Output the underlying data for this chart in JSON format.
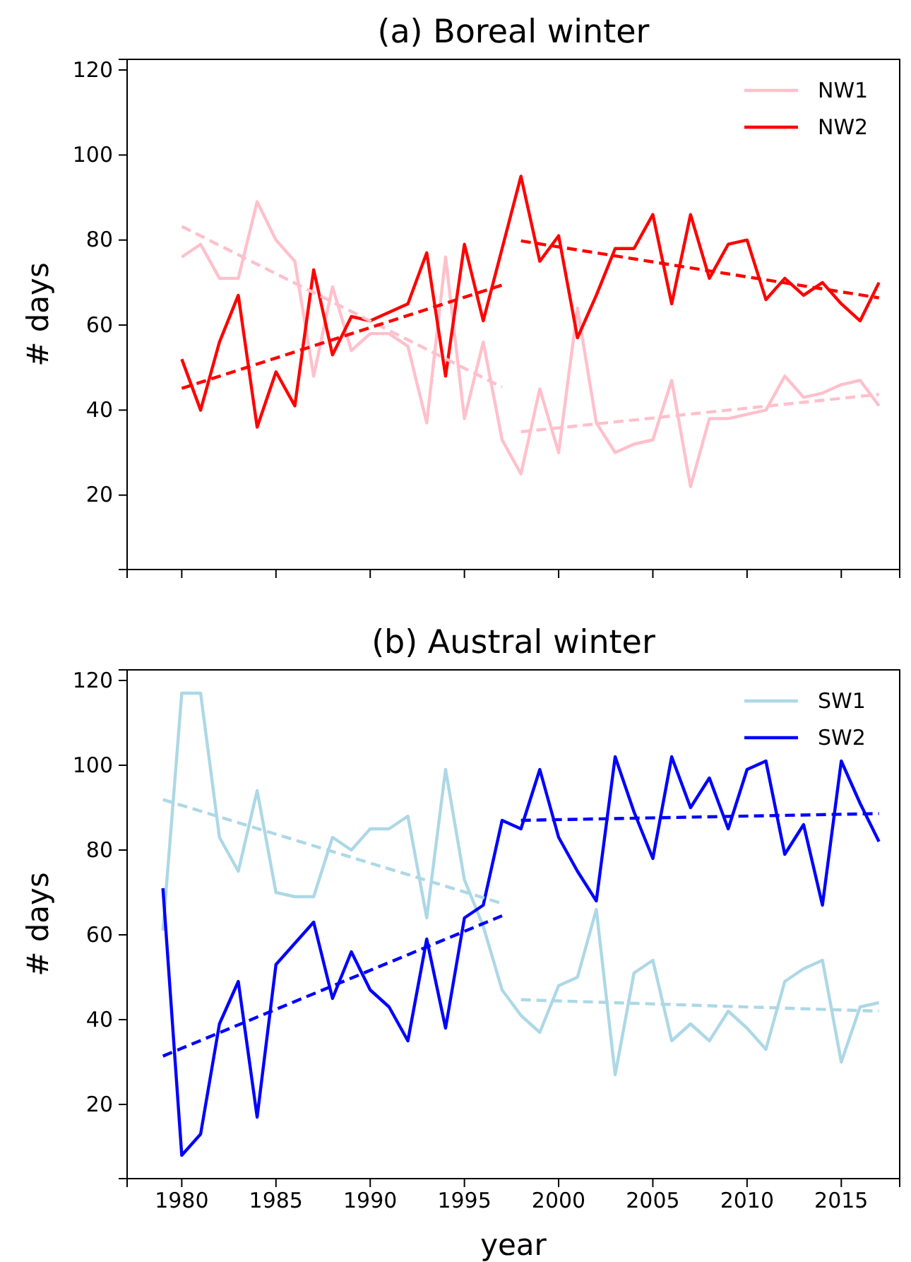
{
  "chart_data": [
    {
      "type": "line",
      "title": "(a) Boreal winter",
      "ylabel": "# days",
      "x": [
        1980,
        1981,
        1982,
        1983,
        1984,
        1985,
        1986,
        1987,
        1988,
        1989,
        1990,
        1991,
        1992,
        1993,
        1994,
        1995,
        1996,
        1997,
        1998,
        1999,
        2000,
        2001,
        2002,
        2003,
        2004,
        2005,
        2006,
        2007,
        2008,
        2009,
        2010,
        2011,
        2012,
        2013,
        2014,
        2015,
        2016,
        2017
      ],
      "series": [
        {
          "name": "NW1",
          "color": "#ffc0cb",
          "values": [
            76,
            79,
            71,
            71,
            89,
            80,
            75,
            48,
            69,
            54,
            58,
            58,
            55,
            37,
            76,
            38,
            56,
            33,
            25,
            45,
            30,
            64,
            37,
            30,
            32,
            33,
            47,
            22,
            38,
            38,
            39,
            40,
            48,
            43,
            44,
            46,
            47,
            41
          ]
        },
        {
          "name": "NW2",
          "color": "#ff0000",
          "values": [
            52,
            40,
            56,
            67,
            36,
            49,
            41,
            73,
            53,
            62,
            61,
            63,
            65,
            77,
            48,
            79,
            61,
            78,
            95,
            75,
            81,
            57,
            67,
            78,
            78,
            86,
            65,
            86,
            71,
            79,
            80,
            66,
            71,
            67,
            70,
            65,
            61,
            70
          ]
        },
        {
          "type": "line",
          "color": "#ffc0cb",
          "line_style": "dashed",
          "x": [
            1980,
            1997
          ],
          "values": [
            83.2,
            45.4
          ]
        },
        {
          "type": "line",
          "color": "#ffc0cb",
          "line_style": "dashed",
          "x": [
            1998,
            2017
          ],
          "values": [
            34.9,
            43.7
          ]
        },
        {
          "type": "line",
          "color": "#ff0000",
          "line_style": "dashed",
          "x": [
            1980,
            1997
          ],
          "values": [
            45.1,
            69.4
          ]
        },
        {
          "type": "line",
          "color": "#ff0000",
          "line_style": "dashed",
          "x": [
            1998,
            2017
          ],
          "values": [
            79.8,
            66.4
          ]
        }
      ],
      "xlim": [
        1977.1,
        2018.1
      ],
      "xticks": [
        1980,
        1985,
        1990,
        1995,
        2000,
        2005,
        2010,
        2015
      ],
      "ylim": [
        2.5,
        122.5
      ],
      "yticks": [
        20,
        40,
        60,
        80,
        100,
        120
      ],
      "tick_labels": "y",
      "legend": "top right",
      "grid": false
    },
    {
      "type": "line",
      "title": "(b) Austral winter",
      "xlabel": "year",
      "ylabel": "# days",
      "x": [
        1979,
        1980,
        1981,
        1982,
        1983,
        1984,
        1985,
        1986,
        1987,
        1988,
        1989,
        1990,
        1991,
        1992,
        1993,
        1994,
        1995,
        1996,
        1997,
        1998,
        1999,
        2000,
        2001,
        2002,
        2003,
        2004,
        2005,
        2006,
        2007,
        2008,
        2009,
        2010,
        2011,
        2012,
        2013,
        2014,
        2015,
        2016,
        2017
      ],
      "series": [
        {
          "name": "SW1",
          "color": "#add8e6",
          "values": [
            61,
            117,
            117,
            83,
            75,
            94,
            70,
            69,
            69,
            83,
            80,
            85,
            85,
            88,
            64,
            99,
            73,
            62,
            47,
            41,
            37,
            48,
            50,
            66,
            27,
            51,
            54,
            35,
            39,
            35,
            42,
            38,
            33,
            49,
            52,
            54,
            30,
            43,
            44
          ]
        },
        {
          "name": "SW2",
          "color": "#0000ff",
          "values": [
            71,
            8,
            13,
            39,
            49,
            17,
            53,
            58,
            63,
            45,
            56,
            47,
            43,
            35,
            59,
            38,
            64,
            67,
            87,
            85,
            99,
            83,
            75,
            68,
            102,
            89,
            78,
            102,
            90,
            97,
            85,
            99,
            101,
            79,
            86,
            67,
            101,
            91,
            82
          ]
        },
        {
          "type": "line",
          "color": "#add8e6",
          "line_style": "dashed",
          "x": [
            1979,
            1997
          ],
          "values": [
            91.9,
            67.4
          ]
        },
        {
          "type": "line",
          "color": "#add8e6",
          "line_style": "dashed",
          "x": [
            1998,
            2017
          ],
          "values": [
            44.7,
            42
          ]
        },
        {
          "type": "line",
          "color": "#0000ff",
          "line_style": "dashed",
          "x": [
            1979,
            1997
          ],
          "values": [
            31.4,
            64.5
          ]
        },
        {
          "type": "line",
          "color": "#0000ff",
          "line_style": "dashed",
          "x": [
            1998,
            2017
          ],
          "values": [
            87,
            88.6
          ]
        }
      ],
      "xlim": [
        1977.1,
        2018.1
      ],
      "xticks": [
        1980,
        1985,
        1990,
        1995,
        2000,
        2005,
        2010,
        2015
      ],
      "ylim": [
        2.5,
        122.5
      ],
      "yticks": [
        20,
        40,
        60,
        80,
        100,
        120
      ],
      "legend": "top right",
      "grid": false
    }
  ]
}
